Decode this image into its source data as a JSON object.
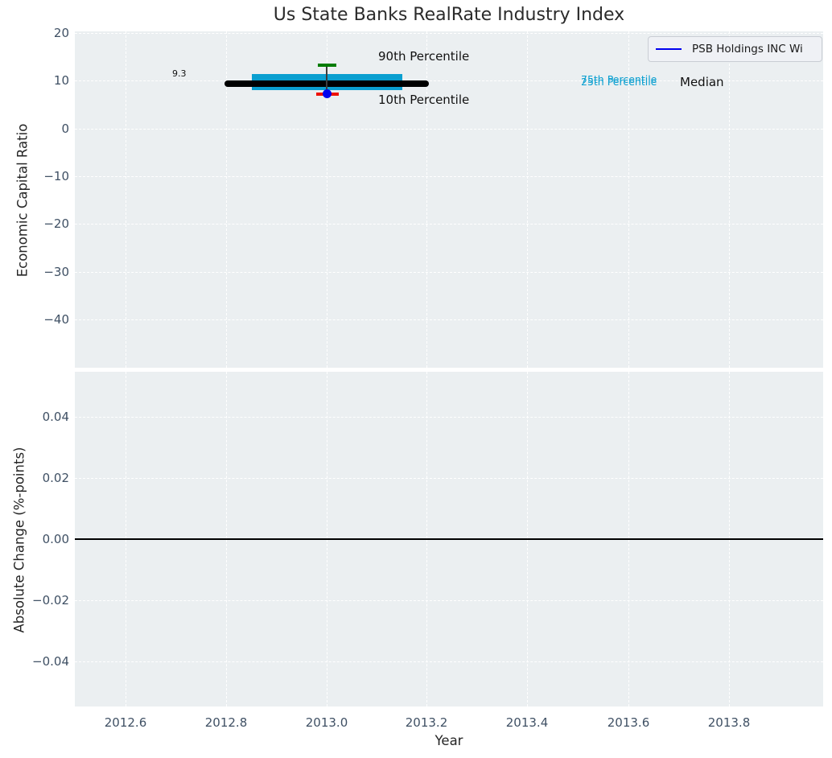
{
  "figure": {
    "title": "Us State Banks RealRate Industry Index"
  },
  "legend": {
    "label": "PSB Holdings INC Wi",
    "line_color": "#0000f0"
  },
  "colors": {
    "axes_background": "#ebeff1",
    "grid": "#ffffff",
    "iqr_box": "#0a9fd0",
    "median_line": "#000000",
    "p90_cap": "#007c00",
    "p10_cap": "#ee1100",
    "company_point": "#0000ee",
    "percentile_label_text": "#0a9fd0",
    "tick_label": "#3f5064"
  },
  "top_chart": {
    "ylabel": "Economic Capital Ratio",
    "y_tick_labels": [
      "20",
      "10",
      "0",
      "−10",
      "−20",
      "−30",
      "−40"
    ],
    "annotations": {
      "median_value": "9.3",
      "p90": "90th Percentile",
      "p10": "10th Percentile",
      "p75": "75th Percentile",
      "p25": "25th Percentile",
      "median": "Median"
    }
  },
  "bottom_chart": {
    "ylabel": "Absolute Change (%-points)",
    "y_tick_labels": [
      "0.04",
      "0.02",
      "0.00",
      "−0.02",
      "−0.04"
    ]
  },
  "x_axis": {
    "label": "Year",
    "tick_labels": [
      "2012.6",
      "2012.8",
      "2013.0",
      "2013.2",
      "2013.4",
      "2013.6",
      "2013.8"
    ]
  },
  "chart_data": [
    {
      "type": "boxplot",
      "title": "Us State Banks RealRate Industry Index",
      "xlabel": "Year",
      "ylabel": "Economic Capital Ratio",
      "xlim": [
        2012.5,
        2013.99
      ],
      "ylim": [
        -50.5,
        20.6
      ],
      "x_ticks": [
        2012.6,
        2012.8,
        2013.0,
        2013.2,
        2013.4,
        2013.6,
        2013.8
      ],
      "y_ticks": [
        20,
        10,
        0,
        -10,
        -20,
        -30,
        -40
      ],
      "grid": "white dashed on light gray",
      "legend_position": "upper right",
      "industry_box": {
        "x": 2013.0,
        "p10": 7.2,
        "p25": 8.1,
        "median": 9.3,
        "p75": 11.4,
        "p90": 13.4,
        "median_label": "9.3",
        "median_line_x_span": [
          2012.8,
          2013.2
        ],
        "box_x_span": [
          2012.85,
          2013.15
        ]
      },
      "series": [
        {
          "name": "PSB Holdings INC Wi",
          "type": "scatter",
          "x": [
            2013.0
          ],
          "y": [
            7.2
          ],
          "color": "#0000ee"
        }
      ],
      "annotations": [
        {
          "text": "9.3",
          "x": 2012.69,
          "y": 10.5
        },
        {
          "text": "90th Percentile",
          "x": 2013.2,
          "y": 14.5
        },
        {
          "text": "10th Percentile",
          "x": 2013.2,
          "y": 5.5
        },
        {
          "text": "75th Percentile",
          "x": 2013.51,
          "y": 9.8,
          "color": "#0a9fd0"
        },
        {
          "text": "25th Percentile",
          "x": 2013.51,
          "y": 9.3,
          "color": "#0a9fd0"
        },
        {
          "text": "Median",
          "x": 2013.7,
          "y": 9.5
        }
      ]
    },
    {
      "type": "line",
      "xlabel": "Year",
      "ylabel": "Absolute Change (%-points)",
      "xlim": [
        2012.5,
        2013.99
      ],
      "ylim": [
        -0.055,
        0.055
      ],
      "x_ticks": [
        2012.6,
        2012.8,
        2013.0,
        2013.2,
        2013.4,
        2013.6,
        2013.8
      ],
      "y_ticks": [
        0.04,
        0.02,
        0.0,
        -0.02,
        -0.04
      ],
      "series": [],
      "reference_line_y": 0.0
    }
  ]
}
